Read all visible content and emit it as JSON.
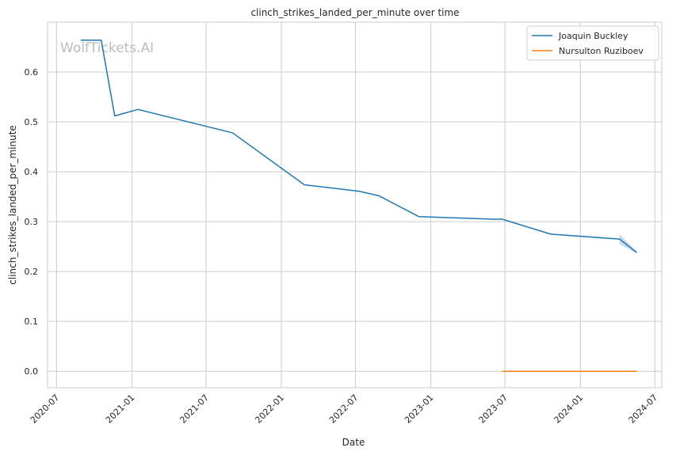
{
  "chart_data": {
    "type": "line",
    "title": "clinch_strikes_landed_per_minute over time",
    "xlabel": "Date",
    "ylabel": "clinch_strikes_landed_per_minute",
    "watermark": "WolfTickets.AI",
    "x_ticks": [
      "2020-07",
      "2021-01",
      "2021-07",
      "2022-01",
      "2022-07",
      "2023-01",
      "2023-07",
      "2024-01",
      "2024-07"
    ],
    "y_ticks": [
      "0.0",
      "0.1",
      "0.2",
      "0.3",
      "0.4",
      "0.5",
      "0.6"
    ],
    "xlim": [
      "2020-06-09",
      "2024-07-18"
    ],
    "ylim": [
      -0.033,
      0.7
    ],
    "grid": true,
    "legend": "top-right",
    "series": [
      {
        "name": "Joaquin Buckley",
        "color": "#1f77b4",
        "points": [
          {
            "x": "2020-08-29",
            "y": 0.664
          },
          {
            "x": "2020-10-18",
            "y": 0.664
          },
          {
            "x": "2020-11-20",
            "y": 0.512
          },
          {
            "x": "2021-01-16",
            "y": 0.525
          },
          {
            "x": "2021-09-04",
            "y": 0.478
          },
          {
            "x": "2022-02-26",
            "y": 0.374
          },
          {
            "x": "2022-07-09",
            "y": 0.361
          },
          {
            "x": "2022-08-27",
            "y": 0.352
          },
          {
            "x": "2022-12-03",
            "y": 0.31
          },
          {
            "x": "2023-06-03",
            "y": 0.305
          },
          {
            "x": "2023-06-24",
            "y": 0.305
          },
          {
            "x": "2023-10-21",
            "y": 0.275
          },
          {
            "x": "2024-04-06",
            "y": 0.265
          },
          {
            "x": "2024-05-18",
            "y": 0.238
          }
        ],
        "band": [
          {
            "x": "2024-04-06",
            "low": 0.255,
            "high": 0.275
          },
          {
            "x": "2024-05-18",
            "low": 0.236,
            "high": 0.24
          }
        ]
      },
      {
        "name": "Nursulton Ruziboev",
        "color": "#ff7f0e",
        "points": [
          {
            "x": "2023-06-24",
            "y": 0.0
          },
          {
            "x": "2024-05-18",
            "y": 0.0
          }
        ]
      }
    ]
  }
}
